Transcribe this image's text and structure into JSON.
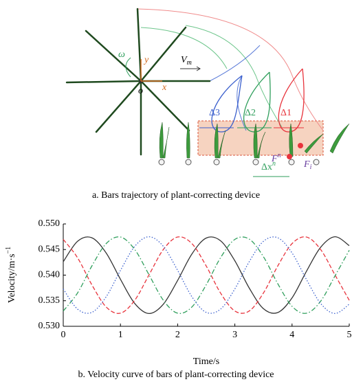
{
  "diagram": {
    "labels": {
      "omega": "ω",
      "y_axis": "y",
      "x_axis": "x",
      "origin": "o",
      "velocity": {
        "main": "V",
        "sub": "m"
      },
      "delta3": "Δ3",
      "delta2": "Δ2",
      "delta1": "Δ1",
      "force_n": {
        "main": "F",
        "sub": "n"
      },
      "force_i": {
        "main": "F",
        "sub": "i"
      },
      "delta_x": {
        "main": "Δx",
        "sup": "n"
      }
    },
    "caption": "a. Bars trajectory of plant-correcting device"
  },
  "chart_data": {
    "type": "line",
    "caption": "b. Velocity curve of bars of plant-correcting device",
    "xlabel": "Time/s",
    "ylabel": {
      "main": "Velocity/m·s",
      "sup": "−1"
    },
    "x": [
      0,
      0.25,
      0.5,
      0.75,
      1,
      1.25,
      1.5,
      1.75,
      2,
      2.25,
      2.5,
      2.75,
      3,
      3.25,
      3.5,
      3.75,
      4,
      4.25,
      4.5,
      4.75,
      5
    ],
    "series": [
      {
        "color": "#333333",
        "style": "solid",
        "values": [
          0.54261,
          0.54661,
          0.5473,
          0.54433,
          0.53919,
          0.53446,
          0.5325,
          0.53432,
          0.53897,
          0.54415,
          0.54725,
          0.54671,
          0.5428,
          0.5375,
          0.53344,
          0.53269,
          0.53555,
          0.54071,
          0.54544,
          0.5475,
          0.54576
        ]
      },
      {
        "color": "#e8333c",
        "style": "dashed",
        "values": [
          0.54698,
          0.54339,
          0.53811,
          0.53378,
          0.53256,
          0.53509,
          0.54006,
          0.54501,
          0.54745,
          0.54615,
          0.54177,
          0.5365,
          0.53298,
          0.53298,
          0.53651,
          0.54178,
          0.54616,
          0.54745,
          0.545,
          0.54005,
          0.53508
        ]
      },
      {
        "color": "#2e9e5b",
        "style": "dashdot",
        "values": [
          0.53298,
          0.53651,
          0.54178,
          0.54616,
          0.54745,
          0.54501,
          0.54005,
          0.53509,
          0.53256,
          0.53378,
          0.53812,
          0.5434,
          0.54698,
          0.54705,
          0.54359,
          0.53833,
          0.5339,
          0.53255,
          0.5349,
          0.53984,
          0.54485
        ]
      },
      {
        "color": "#3a5fcd",
        "style": "dotted",
        "values": [
          0.5373,
          0.53336,
          0.53272,
          0.53576,
          0.54092,
          0.54562,
          0.5475,
          0.54562,
          0.54092,
          0.53576,
          0.53272,
          0.53336,
          0.5373,
          0.5426,
          0.54661,
          0.5473,
          0.54433,
          0.53918,
          0.53446,
          0.5325,
          0.53432
        ]
      }
    ],
    "xlim": [
      0,
      5
    ],
    "ylim": [
      0.53,
      0.55
    ],
    "xticks": [
      0,
      1,
      2,
      3,
      4,
      5
    ],
    "yticks": [
      {
        "value": 0.53,
        "label": "0.530"
      },
      0.535,
      {
        "value": 0.54,
        "label": "0.540"
      },
      0.545,
      {
        "value": 0.55,
        "label": "0.550"
      }
    ]
  }
}
